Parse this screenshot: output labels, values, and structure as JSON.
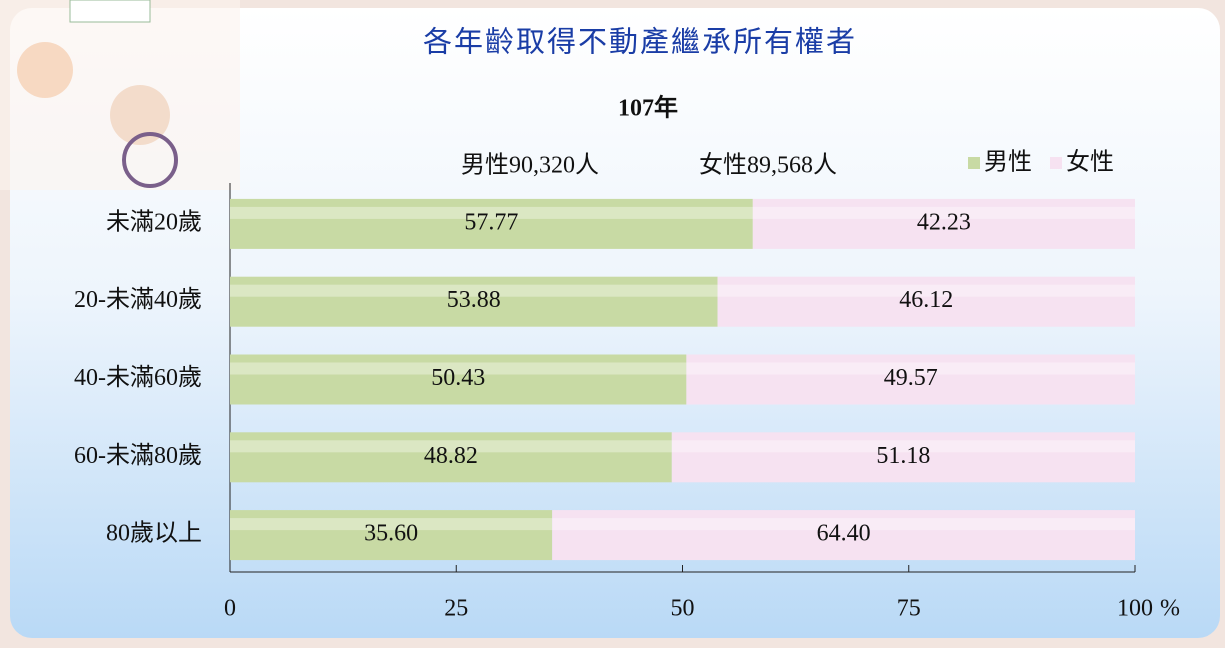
{
  "chart_data": {
    "type": "stacked_bar_horizontal",
    "title": "各年齡取得不動產繼承所有權者",
    "subtitle": "107年",
    "annotations": [
      "男性90,320人",
      "女性89,568人"
    ],
    "x_label": "%",
    "categories": [
      "未滿20歲",
      "20-未滿40歲",
      "40-未滿60歲",
      "60-未滿80歲",
      "80歲以上"
    ],
    "series": [
      {
        "name": "男性",
        "color": "#c8daa4",
        "values": [
          57.77,
          53.88,
          50.43,
          48.82,
          35.6
        ],
        "value_labels": [
          "57.77",
          "53.88",
          "50.43",
          "48.82",
          "35.60"
        ]
      },
      {
        "name": "女性",
        "color": "#f6e2f1",
        "values": [
          42.23,
          46.12,
          49.57,
          51.18,
          64.4
        ],
        "value_labels": [
          "42.23",
          "46.12",
          "49.57",
          "51.18",
          "64.40"
        ]
      }
    ],
    "xlim": [
      0,
      100
    ],
    "xticks": [
      0,
      25,
      50,
      75,
      100
    ],
    "legend": "top-right"
  }
}
